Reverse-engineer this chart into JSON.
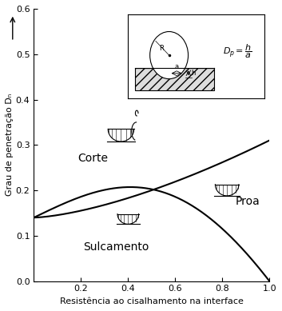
{
  "title": "",
  "xlabel": "Resistência ao cisalhamento na interface",
  "ylabel": "Grau de penetração Dₙ",
  "xlim": [
    0,
    1.0
  ],
  "ylim": [
    0,
    0.6
  ],
  "xticks": [
    0.2,
    0.4,
    0.6,
    0.8,
    1.0
  ],
  "yticks": [
    0,
    0.1,
    0.2,
    0.3,
    0.4,
    0.5,
    0.6
  ],
  "label_corte": "Corte",
  "label_sulcamento": "Sulcamento",
  "label_proa": "Proa",
  "bg_color": "#ffffff",
  "line_color": "#000000",
  "text_color": "#000000"
}
